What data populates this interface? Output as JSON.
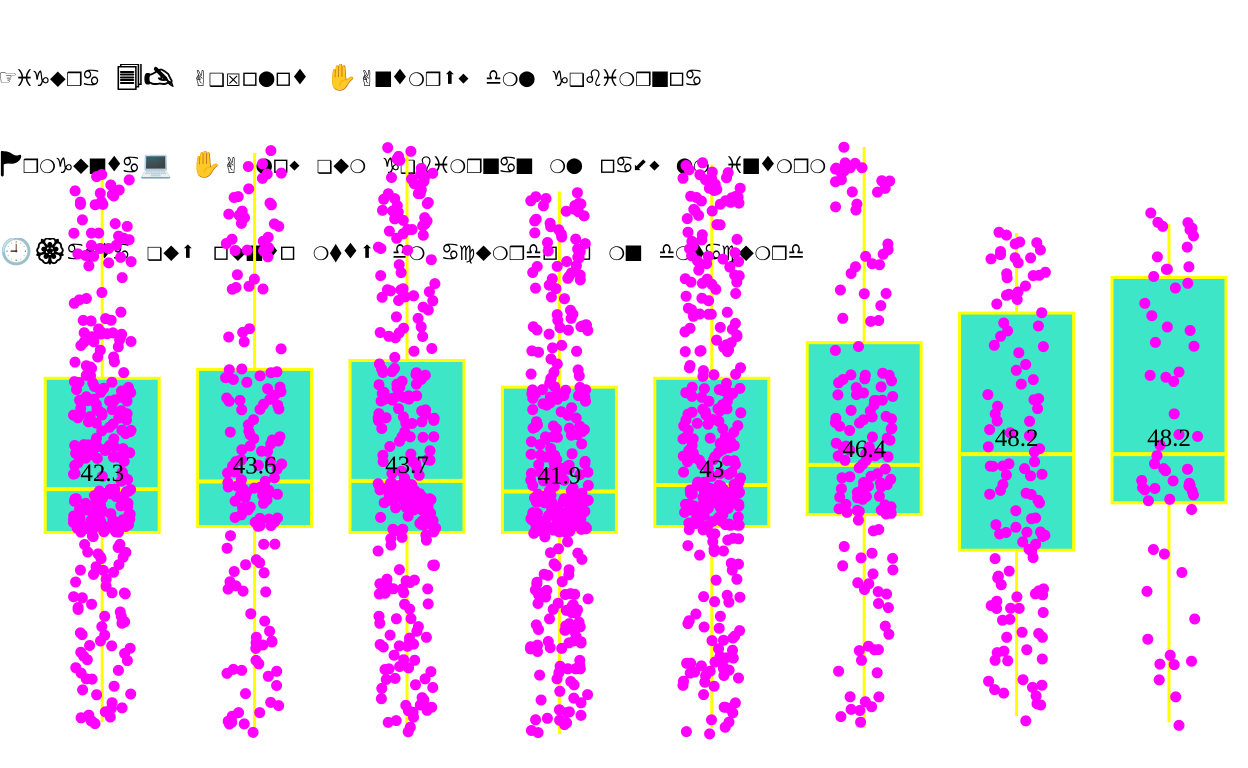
{
  "header": {
    "title_lines": [
      "☞♓♑◆❒♋ 🗐🖎 ✌❑☒◻●◻♦ ✋✌■♦❍❒⬆⬩ ♎❍● ♑❑♌♓❍❒■◻♋",
      "🏲❒❍♑◆■♦♋💻 ✋✌ ●◻⬩ ❏◆❍ ♑❑♌♓❍❒■♋■ ❍● ◻♋⬋⬩ ●❍ ♓■♦❍❒❍",
      "🕘🏵♋⬧♦♋ ❏◆⬆ ◻◆■♦◻ ❍⬧♦⬆ ♎❍ ♋♍◆❍❒♎◻ ◻ ❍■ ♎❍⬧♋♍◆❍❒♎"
    ]
  },
  "chart_data": {
    "type": "box",
    "title": "",
    "xlabel": "",
    "ylabel": "",
    "ylim": [
      0,
      100
    ],
    "grid": false,
    "legend": "none",
    "colors": {
      "box_fill": "#3de6c6",
      "box_edge": "#ffff00",
      "points": "#ff00ff",
      "label": "#000000"
    },
    "boxes": [
      {
        "label": "42.3",
        "median": 42.3,
        "q1": 35.0,
        "q3": 61.0,
        "whisker_low": 3.0,
        "whisker_high": 96.0,
        "n": 300,
        "min": 2,
        "max": 96
      },
      {
        "label": "43.6",
        "median": 43.6,
        "q1": 36.0,
        "q3": 62.5,
        "whisker_low": 1.0,
        "whisker_high": 99.0,
        "n": 160,
        "min": 1,
        "max": 100
      },
      {
        "label": "43.7",
        "median": 43.7,
        "q1": 35.0,
        "q3": 64.0,
        "whisker_low": 1.0,
        "whisker_high": 99.0,
        "n": 260,
        "min": 1,
        "max": 100
      },
      {
        "label": "41.9",
        "median": 41.9,
        "q1": 35.0,
        "q3": 59.5,
        "whisker_low": 1.0,
        "whisker_high": 92.5,
        "n": 320,
        "min": 1,
        "max": 93
      },
      {
        "label": "43",
        "median": 43.0,
        "q1": 36.0,
        "q3": 61.0,
        "whisker_low": 2.0,
        "whisker_high": 97.0,
        "n": 300,
        "min": 1,
        "max": 98
      },
      {
        "label": "46.4",
        "median": 46.4,
        "q1": 38.0,
        "q3": 67.0,
        "whisker_low": 2.0,
        "whisker_high": 100.0,
        "n": 150,
        "min": 2,
        "max": 100
      },
      {
        "label": "48.2",
        "median": 48.2,
        "q1": 32.0,
        "q3": 72.0,
        "whisker_low": 4.0,
        "whisker_high": 85.5,
        "n": 120,
        "min": 3,
        "max": 87
      },
      {
        "label": "48.2",
        "median": 48.2,
        "q1": 40.0,
        "q3": 78.0,
        "whisker_low": 3.0,
        "whisker_high": 87.0,
        "n": 60,
        "min": 2,
        "max": 89
      }
    ]
  }
}
